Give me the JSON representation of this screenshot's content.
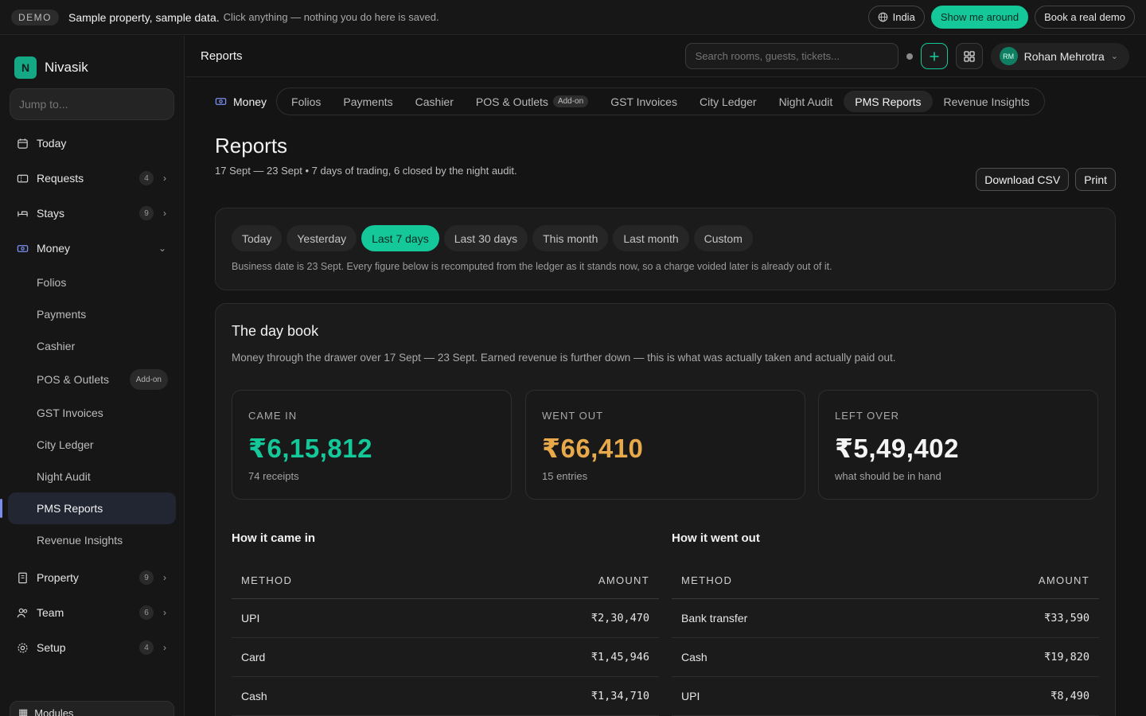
{
  "banner": {
    "badge": "DEMO",
    "strong": "Sample property, sample data.",
    "text": "Click anything — nothing you do here is saved.",
    "region": "India",
    "tour": "Show me around",
    "book": "Book a real demo"
  },
  "brand": {
    "name": "Nivasik"
  },
  "sidebar": {
    "jump_placeholder": "Jump to...",
    "items": {
      "today": "Today",
      "requests": {
        "label": "Requests",
        "count": "4"
      },
      "stays": {
        "label": "Stays",
        "count": "9"
      },
      "money": "Money",
      "property": {
        "label": "Property",
        "count": "9"
      },
      "team": {
        "label": "Team",
        "count": "6"
      },
      "setup": {
        "label": "Setup",
        "count": "4"
      }
    },
    "money_sub": {
      "folios": "Folios",
      "payments": "Payments",
      "cashier": "Cashier",
      "pos": "POS & Outlets",
      "addon": "Add-on",
      "gst": "GST Invoices",
      "city_ledger": "City Ledger",
      "night_audit": "Night Audit",
      "pms_reports": "PMS Reports",
      "revenue": "Revenue Insights"
    },
    "modules": "Modules"
  },
  "topbar": {
    "title": "Reports",
    "search_placeholder": "Search rooms, guests, tickets...",
    "user_initials": "RM",
    "user_name": "Rohan Mehrotra"
  },
  "subnav": {
    "label": "Money",
    "tabs": {
      "folios": "Folios",
      "payments": "Payments",
      "cashier": "Cashier",
      "pos": "POS & Outlets",
      "addon": "Add-on",
      "gst": "GST Invoices",
      "city_ledger": "City Ledger",
      "night_audit": "Night Audit",
      "pms_reports": "PMS Reports",
      "revenue": "Revenue Insights"
    }
  },
  "page": {
    "title": "Reports",
    "subtitle": "17 Sept — 23 Sept • 7 days of trading, 6 closed by the night audit.",
    "download": "Download CSV",
    "print": "Print"
  },
  "ranges": {
    "today": "Today",
    "yesterday": "Yesterday",
    "last7": "Last 7 days",
    "last30": "Last 30 days",
    "this_month": "This month",
    "last_month": "Last month",
    "custom": "Custom",
    "note": "Business date is 23 Sept. Every figure below is recomputed from the ledger as it stands now, so a charge voided later is already out of it."
  },
  "daybook": {
    "title": "The day book",
    "desc": "Money through the drawer over 17 Sept — 23 Sept. Earned revenue is further down — this is what was actually taken and actually paid out.",
    "came_in": {
      "label": "CAME IN",
      "value": "₹6,15,812",
      "hint": "74 receipts"
    },
    "went_out": {
      "label": "WENT OUT",
      "value": "₹66,410",
      "hint": "15 entries"
    },
    "left_over": {
      "label": "LEFT OVER",
      "value": "₹5,49,402",
      "hint": "what should be in hand"
    },
    "in_title": "How it came in",
    "out_title": "How it went out",
    "col_method": "METHOD",
    "col_amount": "AMOUNT",
    "in_rows": [
      {
        "method": "UPI",
        "amount": "₹2,30,470"
      },
      {
        "method": "Card",
        "amount": "₹1,45,946"
      },
      {
        "method": "Cash",
        "amount": "₹1,34,710"
      }
    ],
    "out_rows": [
      {
        "method": "Bank transfer",
        "amount": "₹33,590"
      },
      {
        "method": "Cash",
        "amount": "₹19,820"
      },
      {
        "method": "UPI",
        "amount": "₹8,490"
      }
    ]
  },
  "colors": {
    "accent": "#14c89a",
    "came_in": "#14c89a",
    "went_out": "#e8a94a",
    "active_nav": "#222633"
  }
}
